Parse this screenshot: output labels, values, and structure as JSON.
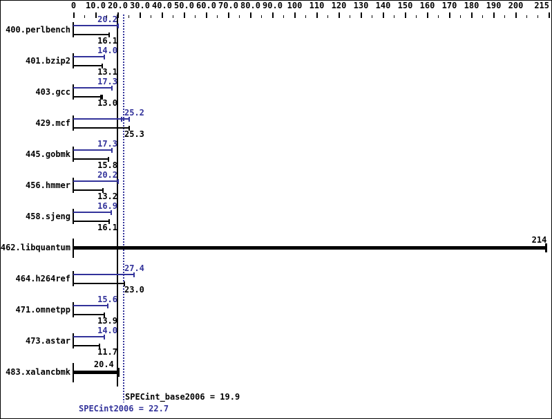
{
  "chart_data": {
    "type": "bar",
    "orientation": "horizontal",
    "title": "",
    "axis": {
      "min": 0,
      "max": 215,
      "minor_step": 5,
      "major_step": 10,
      "position": "top",
      "tick_labels": [
        "0",
        "10.0",
        "20.0",
        "30.0",
        "40.0",
        "50.0",
        "60.0",
        "70.0",
        "80.0",
        "90.0",
        "100",
        "110",
        "120",
        "130",
        "140",
        "150",
        "160",
        "170",
        "180",
        "190",
        "200",
        "215"
      ]
    },
    "series": [
      {
        "name": "SPECint2006 (peak)",
        "key": "peak",
        "color": "#32329A"
      },
      {
        "name": "SPECint_base2006 (base)",
        "key": "base",
        "color": "#000000"
      }
    ],
    "benchmarks": [
      {
        "name": "400.perlbench",
        "peak": 20.2,
        "base": 16.1
      },
      {
        "name": "401.bzip2",
        "peak": 14.0,
        "base": 13.1
      },
      {
        "name": "403.gcc",
        "peak": 17.3,
        "base": 13.0,
        "base_extra_ticks": [
          12.4
        ]
      },
      {
        "name": "429.mcf",
        "peak": 25.2,
        "base": 25.3,
        "peak_extra_ticks": [
          21.8
        ]
      },
      {
        "name": "445.gobmk",
        "peak": 17.3,
        "base": 15.8
      },
      {
        "name": "456.hmmer",
        "peak": 20.2,
        "base": 13.2
      },
      {
        "name": "458.sjeng",
        "peak": 16.9,
        "base": 16.1
      },
      {
        "name": "462.libquantum",
        "peak": null,
        "base": 214
      },
      {
        "name": "464.h264ref",
        "peak": 27.4,
        "base": 23.0
      },
      {
        "name": "471.omnetpp",
        "peak": 15.6,
        "base": 13.9
      },
      {
        "name": "473.astar",
        "peak": 14.0,
        "base": 11.7
      },
      {
        "name": "483.xalancbmk",
        "peak": null,
        "base": 20.4
      }
    ],
    "reference_lines": [
      {
        "label": "SPECint_base2006 = 19.9",
        "value": 19.9,
        "style": "solid",
        "color": "#000000"
      },
      {
        "label": "SPECint2006 = 22.7",
        "value": 22.7,
        "style": "dotted",
        "color": "#32329A"
      }
    ],
    "summary": {
      "base_label": "SPECint_base2006 = 19.9",
      "base_value": 19.9,
      "peak_label": "SPECint2006 = 22.7",
      "peak_value": 22.7
    },
    "colors": {
      "peak": "#32329A",
      "base": "#000000",
      "background": "#FFFFFF"
    },
    "legend": "none",
    "grid": "off"
  }
}
